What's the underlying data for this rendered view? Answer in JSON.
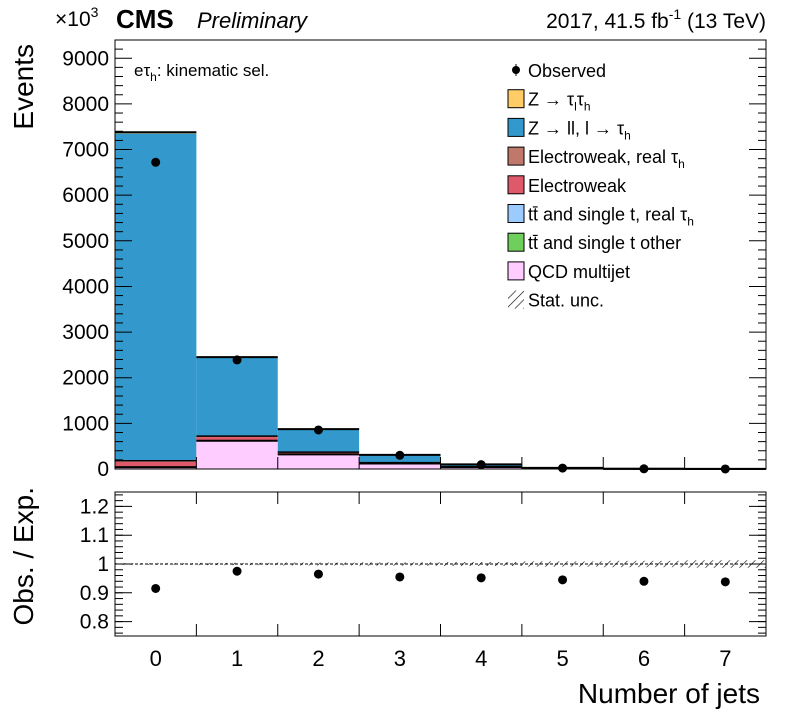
{
  "header": {
    "multiplier": "×10",
    "multiplier_exp": "3",
    "experiment": "CMS",
    "status": "Preliminary",
    "lumi_prefix": "2017, 41.5 fb",
    "lumi_exp": "-1",
    "lumi_suffix": " (13 TeV)"
  },
  "annotation": {
    "main": "eτ",
    "sub": "h",
    "rest": ": kinematic sel."
  },
  "legend": [
    {
      "key": "observed",
      "text": "Observed",
      "marker": "point"
    },
    {
      "key": "ztautau",
      "text": "Z → τ",
      "sub1": "l",
      "mid": "τ",
      "sub2": "h",
      "color": "#ffcc66",
      "marker": "box"
    },
    {
      "key": "zll",
      "text": "Z → ll, l → τ",
      "sub2": "h",
      "color": "#3399cc",
      "marker": "box"
    },
    {
      "key": "ewk_real",
      "text": "Electroweak, real  τ",
      "sub2": "h",
      "color": "#c0786a",
      "marker": "box"
    },
    {
      "key": "ewk",
      "text": "Electroweak",
      "color": "#de5a6a",
      "marker": "box"
    },
    {
      "key": "tt_real",
      "text": "tt̄ and single t, real  τ",
      "sub2": "h",
      "color": "#9bcbff",
      "marker": "box"
    },
    {
      "key": "tt_other",
      "text": "tt̄ and single t other",
      "color": "#6fcf5c",
      "marker": "box"
    },
    {
      "key": "qcd",
      "text": "QCD multijet",
      "color": "#ffccff",
      "marker": "box"
    },
    {
      "key": "stat",
      "text": "Stat. unc.",
      "marker": "hatch"
    }
  ],
  "chart_data": [
    {
      "type": "bar",
      "stacked": true,
      "scale_multiplier": 1000,
      "ylabel": "Events",
      "ylim": [
        0,
        9400
      ],
      "yticks": [
        0,
        1000,
        2000,
        3000,
        4000,
        5000,
        6000,
        7000,
        8000,
        9000
      ],
      "categories": [
        "0",
        "1",
        "2",
        "3",
        "4",
        "5",
        "6",
        "7"
      ],
      "series": [
        {
          "name": "QCD multijet",
          "color": "#ffccff",
          "values": [
            40,
            620,
            320,
            120,
            45,
            12,
            3,
            1
          ]
        },
        {
          "name": "tt̄ and single t other",
          "color": "#6fcf5c",
          "values": [
            0,
            0,
            0,
            0,
            0,
            0,
            0,
            0
          ]
        },
        {
          "name": "tt̄ and single t, real τh",
          "color": "#9bcbff",
          "values": [
            0,
            0,
            0,
            0,
            0,
            0,
            0,
            0
          ]
        },
        {
          "name": "Electroweak",
          "color": "#de5a6a",
          "values": [
            120,
            80,
            40,
            15,
            5,
            2,
            1,
            0
          ]
        },
        {
          "name": "Electroweak, real τh",
          "color": "#c0786a",
          "values": [
            20,
            20,
            10,
            5,
            2,
            1,
            0,
            0
          ]
        },
        {
          "name": "Z → ll, l → τh",
          "color": "#3399cc",
          "values": [
            7170,
            1730,
            505,
            170,
            48,
            10,
            2,
            0.5
          ]
        },
        {
          "name": "Z → τlτh",
          "color": "#ffcc66",
          "values": [
            30,
            0,
            0,
            0,
            0,
            0,
            0,
            0
          ]
        }
      ],
      "observed": [
        6720,
        2390,
        855,
        300,
        95,
        20,
        5,
        1
      ]
    },
    {
      "type": "scatter",
      "ylabel": "Obs. / Exp.",
      "xlabel": "Number of jets",
      "ylim": [
        0.75,
        1.25
      ],
      "yticks": [
        0.8,
        0.9,
        1,
        1.1,
        1.2
      ],
      "ytick_labels": [
        "0.8",
        "0.9",
        "1",
        "1.1",
        "1.2"
      ],
      "reference_line": 1,
      "x": [
        0,
        1,
        2,
        3,
        4,
        5,
        6,
        7
      ],
      "values": [
        0.915,
        0.975,
        0.965,
        0.955,
        0.952,
        0.945,
        0.94,
        0.938
      ],
      "errors": [
        0.003,
        0.004,
        0.005,
        0.006,
        0.007,
        0.009,
        0.011,
        0.013
      ]
    }
  ]
}
